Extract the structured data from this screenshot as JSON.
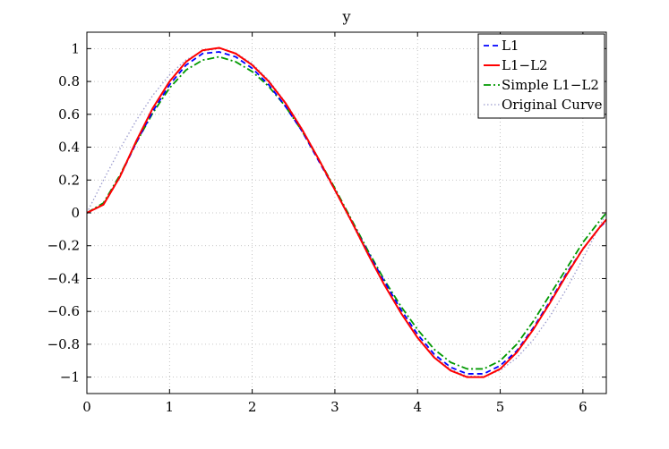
{
  "chart_data": {
    "type": "line",
    "title": "y",
    "xlabel": "",
    "ylabel": "",
    "xlim": [
      0,
      6.2832
    ],
    "ylim": [
      -1.1,
      1.1
    ],
    "xticks": [
      0,
      1,
      2,
      3,
      4,
      5,
      6
    ],
    "xtick_labels": [
      "0",
      "1",
      "2",
      "3",
      "4",
      "5",
      "6"
    ],
    "yticks": [
      -1,
      -0.8,
      -0.6,
      -0.4,
      -0.2,
      0,
      0.2,
      0.4,
      0.6,
      0.8,
      1
    ],
    "ytick_labels": [
      "−1",
      "−0.8",
      "−0.6",
      "−0.4",
      "−0.2",
      "0",
      "0.2",
      "0.4",
      "0.6",
      "0.8",
      "1"
    ],
    "grid": true,
    "legend_position": "top-right",
    "x": [
      0,
      0.2,
      0.4,
      0.6,
      0.8,
      1.0,
      1.2,
      1.4,
      1.6,
      1.8,
      2.0,
      2.2,
      2.4,
      2.6,
      2.8,
      3.0,
      3.2,
      3.4,
      3.6,
      3.8,
      4.0,
      4.2,
      4.4,
      4.6,
      4.8,
      5.0,
      5.2,
      5.4,
      5.6,
      5.8,
      6.0,
      6.2,
      6.2832
    ],
    "series": [
      {
        "name": "L1",
        "color": "#0000ff",
        "style": "dashed",
        "values": [
          0,
          0.05,
          0.22,
          0.43,
          0.62,
          0.78,
          0.9,
          0.97,
          0.98,
          0.95,
          0.88,
          0.78,
          0.65,
          0.5,
          0.32,
          0.14,
          -0.05,
          -0.24,
          -0.42,
          -0.59,
          -0.74,
          -0.86,
          -0.94,
          -0.98,
          -0.98,
          -0.93,
          -0.84,
          -0.7,
          -0.54,
          -0.37,
          -0.22,
          -0.09,
          -0.05
        ]
      },
      {
        "name": "L1−L2",
        "color": "#ff0000",
        "style": "solid",
        "values": [
          0,
          0.05,
          0.22,
          0.44,
          0.64,
          0.8,
          0.92,
          0.99,
          1.005,
          0.97,
          0.9,
          0.8,
          0.67,
          0.51,
          0.33,
          0.14,
          -0.05,
          -0.25,
          -0.44,
          -0.61,
          -0.76,
          -0.88,
          -0.96,
          -1.0,
          -1.0,
          -0.95,
          -0.85,
          -0.71,
          -0.55,
          -0.38,
          -0.22,
          -0.09,
          -0.04
        ]
      },
      {
        "name": "Simple L1−L2",
        "color": "#009900",
        "style": "dashdot",
        "values": [
          0,
          0.06,
          0.23,
          0.43,
          0.61,
          0.76,
          0.87,
          0.93,
          0.95,
          0.92,
          0.86,
          0.77,
          0.65,
          0.5,
          0.33,
          0.15,
          -0.04,
          -0.23,
          -0.41,
          -0.57,
          -0.71,
          -0.83,
          -0.91,
          -0.95,
          -0.95,
          -0.9,
          -0.8,
          -0.66,
          -0.5,
          -0.34,
          -0.18,
          -0.05,
          0.0
        ]
      },
      {
        "name": "Original Curve",
        "color": "#9a9acd",
        "style": "dotted",
        "values": [
          0,
          0.199,
          0.389,
          0.565,
          0.717,
          0.841,
          0.932,
          0.985,
          1.0,
          0.974,
          0.909,
          0.808,
          0.675,
          0.516,
          0.335,
          0.141,
          -0.058,
          -0.256,
          -0.443,
          -0.612,
          -0.757,
          -0.872,
          -0.952,
          -0.994,
          -0.996,
          -0.959,
          -0.883,
          -0.773,
          -0.631,
          -0.465,
          -0.279,
          -0.083,
          0.0
        ]
      }
    ]
  }
}
